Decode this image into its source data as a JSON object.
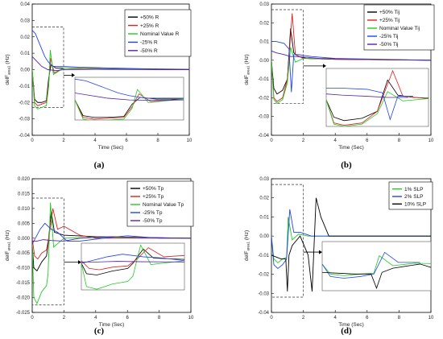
{
  "chart_data": [
    {
      "type": "line",
      "panel_label": "(a)",
      "xlabel": "Time (Sec)",
      "ylabel": "delF",
      "ylabel_sub": "area1",
      "ylabel_unit": " (Hz)",
      "xlim": [
        0,
        10
      ],
      "ylim": [
        -0.04,
        0.04
      ],
      "xticks": [
        0,
        2,
        4,
        6,
        8,
        10
      ],
      "yticks": [
        -0.04,
        -0.03,
        -0.02,
        -0.01,
        0.0,
        0.01,
        0.02,
        0.03,
        0.04
      ],
      "ytick_labels": [
        "-0.04",
        "-0.03",
        "-0.02",
        "-0.01",
        "0.00",
        "0.01",
        "0.02",
        "0.03",
        "0.04"
      ],
      "legend_position": "top-right",
      "inset_source_box": {
        "x": [
          0,
          2
        ],
        "y": [
          -0.023,
          0.026
        ]
      },
      "series": [
        {
          "name": "+50% R",
          "color": "#000000",
          "points": [
            [
              0,
              0
            ],
            [
              0.15,
              -0.018
            ],
            [
              0.35,
              -0.02
            ],
            [
              0.6,
              -0.02
            ],
            [
              0.9,
              -0.019
            ],
            [
              1.05,
              -0.005
            ],
            [
              1.2,
              0.003
            ],
            [
              1.5,
              0.001
            ],
            [
              2,
              0.001
            ],
            [
              3,
              0.0008
            ],
            [
              5,
              0.0005
            ],
            [
              7,
              0.0002
            ],
            [
              10,
              0
            ]
          ]
        },
        {
          "name": "+25% R",
          "color": "#e02020",
          "points": [
            [
              0,
              0
            ],
            [
              0.15,
              -0.02
            ],
            [
              0.35,
              -0.022
            ],
            [
              0.6,
              -0.021
            ],
            [
              0.9,
              -0.02
            ],
            [
              1.05,
              -0.008
            ],
            [
              1.18,
              0.007
            ],
            [
              1.4,
              -0.002
            ],
            [
              2,
              0.001
            ],
            [
              3,
              0.0008
            ],
            [
              5,
              0.0004
            ],
            [
              10,
              0
            ]
          ]
        },
        {
          "name": "Nominal Value R",
          "color": "#22cc22",
          "points": [
            [
              0,
              0
            ],
            [
              0.15,
              -0.022
            ],
            [
              0.35,
              -0.024
            ],
            [
              0.6,
              -0.023
            ],
            [
              0.9,
              -0.022
            ],
            [
              1.05,
              -0.01
            ],
            [
              1.15,
              0.012
            ],
            [
              1.35,
              -0.003
            ],
            [
              2,
              0.001
            ],
            [
              3,
              0.0006
            ],
            [
              10,
              0
            ]
          ]
        },
        {
          "name": "-25% R",
          "color": "#2244ee",
          "points": [
            [
              0,
              0.024
            ],
            [
              0.2,
              0.022
            ],
            [
              0.5,
              0.015
            ],
            [
              0.8,
              0.008
            ],
            [
              1.0,
              0.005
            ],
            [
              1.3,
              0.002
            ],
            [
              2,
              0.002
            ],
            [
              3,
              0.0015
            ],
            [
              5,
              0.001
            ],
            [
              7,
              0.0006
            ],
            [
              10,
              0.0002
            ]
          ]
        },
        {
          "name": "-50% R",
          "color": "#5522aa",
          "points": [
            [
              0,
              0.008
            ],
            [
              0.3,
              0.005
            ],
            [
              0.6,
              0.002
            ],
            [
              1.0,
              0.0
            ],
            [
              1.5,
              -0.0005
            ],
            [
              2,
              0.0
            ],
            [
              4,
              0.0002
            ],
            [
              10,
              0
            ]
          ]
        }
      ]
    },
    {
      "type": "line",
      "panel_label": "(b)",
      "xlabel": "Time (Sec)",
      "ylabel": "delF",
      "ylabel_sub": "area1",
      "ylabel_unit": " (Hz)",
      "xlim": [
        0,
        10
      ],
      "ylim": [
        -0.04,
        0.03
      ],
      "xticks": [
        0,
        2,
        4,
        6,
        8,
        10
      ],
      "yticks": [
        -0.04,
        -0.03,
        -0.02,
        -0.01,
        0.0,
        0.01,
        0.02,
        0.03
      ],
      "ytick_labels": [
        "-0.04",
        "-0.03",
        "-0.02",
        "-0.01",
        "0.00",
        "0.01",
        "0.02",
        "0.03"
      ],
      "legend_position": "top-right",
      "inset_source_box": {
        "x": [
          0,
          2
        ],
        "y": [
          -0.023,
          0.027
        ]
      },
      "series": [
        {
          "name": "+50% Tij",
          "color": "#000000",
          "points": [
            [
              0,
              0
            ],
            [
              0.15,
              -0.015
            ],
            [
              0.35,
              -0.018
            ],
            [
              0.7,
              -0.016
            ],
            [
              1.0,
              -0.01
            ],
            [
              1.2,
              0.017
            ],
            [
              1.4,
              0.004
            ],
            [
              1.7,
              0.002
            ],
            [
              2.2,
              0.001
            ],
            [
              4,
              0.0005
            ],
            [
              10,
              0
            ]
          ]
        },
        {
          "name": "+25% Tij",
          "color": "#e02020",
          "points": [
            [
              0,
              0
            ],
            [
              0.15,
              -0.02
            ],
            [
              0.35,
              -0.022
            ],
            [
              0.7,
              -0.02
            ],
            [
              1.0,
              -0.01
            ],
            [
              1.3,
              0.025
            ],
            [
              1.5,
              0.003
            ],
            [
              2,
              0.001
            ],
            [
              4,
              0.0005
            ],
            [
              10,
              0
            ]
          ]
        },
        {
          "name": "Nominal Value Tij",
          "color": "#22cc22",
          "points": [
            [
              0,
              0
            ],
            [
              0.15,
              -0.021
            ],
            [
              0.35,
              -0.023
            ],
            [
              0.7,
              -0.021
            ],
            [
              1.0,
              -0.012
            ],
            [
              1.2,
              0.007
            ],
            [
              1.5,
              -0.001
            ],
            [
              2,
              0.001
            ],
            [
              10,
              0
            ]
          ]
        },
        {
          "name": "-25% Tij",
          "color": "#2244ee",
          "points": [
            [
              0,
              0.01
            ],
            [
              0.3,
              0.01
            ],
            [
              0.8,
              0.009
            ],
            [
              1.1,
              0.006
            ],
            [
              1.25,
              -0.017
            ],
            [
              1.4,
              0.003
            ],
            [
              1.7,
              0.003
            ],
            [
              2.5,
              0.002
            ],
            [
              4,
              0.001
            ],
            [
              10,
              0
            ]
          ]
        },
        {
          "name": "-50% Tij",
          "color": "#5522aa",
          "points": [
            [
              0,
              0.005
            ],
            [
              0.3,
              0.004
            ],
            [
              0.8,
              0.003
            ],
            [
              1.2,
              0.002
            ],
            [
              1.6,
              0.002
            ],
            [
              3,
              0.001
            ],
            [
              6,
              0.0005
            ],
            [
              10,
              0
            ]
          ]
        }
      ]
    },
    {
      "type": "line",
      "panel_label": "(c)",
      "xlabel": "Time (Sec)",
      "ylabel": "delF",
      "ylabel_sub": "area1",
      "ylabel_unit": " (Hz)",
      "xlim": [
        0,
        10
      ],
      "ylim": [
        -0.025,
        0.02
      ],
      "xticks": [
        0,
        2,
        4,
        6,
        8,
        10
      ],
      "yticks": [
        -0.025,
        -0.02,
        -0.015,
        -0.01,
        -0.005,
        0.0,
        0.005,
        0.01,
        0.015,
        0.02
      ],
      "ytick_labels": [
        "-0.025",
        "-0.020",
        "-0.015",
        "-0.010",
        "-0.005",
        "0.000",
        "0.005",
        "0.010",
        "0.015",
        "0.020"
      ],
      "legend_position": "top-right",
      "inset_source_box": {
        "x": [
          0,
          2
        ],
        "y": [
          -0.0225,
          0.0135
        ]
      },
      "series": [
        {
          "name": "+50% Tp",
          "color": "#000000",
          "points": [
            [
              0,
              -0.002
            ],
            [
              0.1,
              -0.01
            ],
            [
              0.3,
              -0.011
            ],
            [
              0.6,
              -0.008
            ],
            [
              0.9,
              -0.006
            ],
            [
              1.0,
              -0.002
            ],
            [
              1.2,
              0.009
            ],
            [
              1.4,
              0.002
            ],
            [
              2,
              0.001
            ],
            [
              4,
              0.0005
            ],
            [
              10,
              0
            ]
          ]
        },
        {
          "name": "+25% Tp",
          "color": "#e02020",
          "points": [
            [
              0,
              0
            ],
            [
              0.15,
              -0.006
            ],
            [
              0.35,
              -0.007
            ],
            [
              0.6,
              -0.005
            ],
            [
              0.9,
              -0.004
            ],
            [
              1.1,
              0.002
            ],
            [
              1.3,
              0.01
            ],
            [
              1.6,
              0.003
            ],
            [
              2,
              0.004
            ],
            [
              3,
              0.001
            ],
            [
              4,
              0
            ],
            [
              10,
              0
            ]
          ]
        },
        {
          "name": "Nominal Value Tp",
          "color": "#22cc22",
          "points": [
            [
              0,
              -0.002
            ],
            [
              0.1,
              -0.02
            ],
            [
              0.3,
              -0.022
            ],
            [
              0.6,
              -0.018
            ],
            [
              0.9,
              -0.016
            ],
            [
              1.0,
              -0.012
            ],
            [
              1.15,
              0.012
            ],
            [
              1.35,
              -0.003
            ],
            [
              2,
              0.0
            ],
            [
              4,
              0.0003
            ],
            [
              10,
              0
            ]
          ]
        },
        {
          "name": "-25% Tp",
          "color": "#2244ee",
          "points": [
            [
              0,
              -0.002
            ],
            [
              0.2,
              0.0
            ],
            [
              0.5,
              0.003
            ],
            [
              0.8,
              0.005
            ],
            [
              1.2,
              0.003
            ],
            [
              1.6,
              0.002
            ],
            [
              2.2,
              -0.001
            ],
            [
              3,
              -0.001
            ],
            [
              4.5,
              0
            ],
            [
              6,
              0.0008
            ],
            [
              8,
              0
            ],
            [
              10,
              0
            ]
          ]
        },
        {
          "name": "-50% Tp",
          "color": "#5522aa",
          "points": [
            [
              0,
              -0.001
            ],
            [
              0.3,
              -0.001
            ],
            [
              0.7,
              -0.0005
            ],
            [
              1.2,
              -0.0008
            ],
            [
              2,
              -0.001
            ],
            [
              3,
              0.0
            ],
            [
              5,
              0.0005
            ],
            [
              7,
              0.0002
            ],
            [
              10,
              0
            ]
          ]
        }
      ]
    },
    {
      "type": "line",
      "panel_label": "(d)",
      "xlabel": "Time (Sec)",
      "ylabel": "delF",
      "ylabel_sub": "area1",
      "ylabel_unit": " (Hz)",
      "xlim": [
        0,
        10
      ],
      "ylim": [
        -0.04,
        0.03
      ],
      "xticks": [
        0,
        2,
        4,
        6,
        8,
        10
      ],
      "yticks": [
        -0.04,
        -0.03,
        -0.02,
        -0.01,
        0.0,
        0.01,
        0.02,
        0.03
      ],
      "ytick_labels": [
        "-0.04",
        "-0.03",
        "-0.02",
        "-0.01",
        "0.00",
        "0.01",
        "0.02",
        "0.03"
      ],
      "legend_position": "top-right",
      "inset_source_box": {
        "x": [
          0,
          2
        ],
        "y": [
          -0.032,
          0.027
        ]
      },
      "series": [
        {
          "name": "1% SLP",
          "color": "#22cc22",
          "points": [
            [
              0,
              0
            ],
            [
              0.15,
              -0.012
            ],
            [
              0.4,
              -0.014
            ],
            [
              0.7,
              -0.012
            ],
            [
              0.95,
              -0.011
            ],
            [
              1.05,
              0.01
            ],
            [
              1.3,
              -0.002
            ],
            [
              1.7,
              0.001
            ],
            [
              2.3,
              0.0
            ],
            [
              10,
              0
            ]
          ]
        },
        {
          "name": "2% SLP",
          "color": "#2244ee",
          "points": [
            [
              0,
              0
            ],
            [
              0.15,
              -0.015
            ],
            [
              0.4,
              -0.017
            ],
            [
              0.7,
              -0.015
            ],
            [
              0.95,
              -0.012
            ],
            [
              1.15,
              0.014
            ],
            [
              1.4,
              0.002
            ],
            [
              1.8,
              0.002
            ],
            [
              2.5,
              0.0
            ],
            [
              10,
              0
            ]
          ]
        },
        {
          "name": "10% SLP",
          "color": "#000000",
          "points": [
            [
              0,
              -0.01
            ],
            [
              0.3,
              -0.011
            ],
            [
              0.6,
              -0.012
            ],
            [
              0.9,
              -0.012
            ],
            [
              1.0,
              -0.029
            ],
            [
              1.1,
              -0.01
            ],
            [
              1.3,
              -0.005
            ],
            [
              1.8,
              0.0
            ],
            [
              2.3,
              -0.01
            ],
            [
              2.55,
              -0.029
            ],
            [
              2.8,
              0.02
            ],
            [
              3.1,
              0.01
            ],
            [
              3.6,
              0.0
            ],
            [
              4.5,
              0.0
            ],
            [
              10,
              0
            ]
          ]
        }
      ]
    }
  ]
}
